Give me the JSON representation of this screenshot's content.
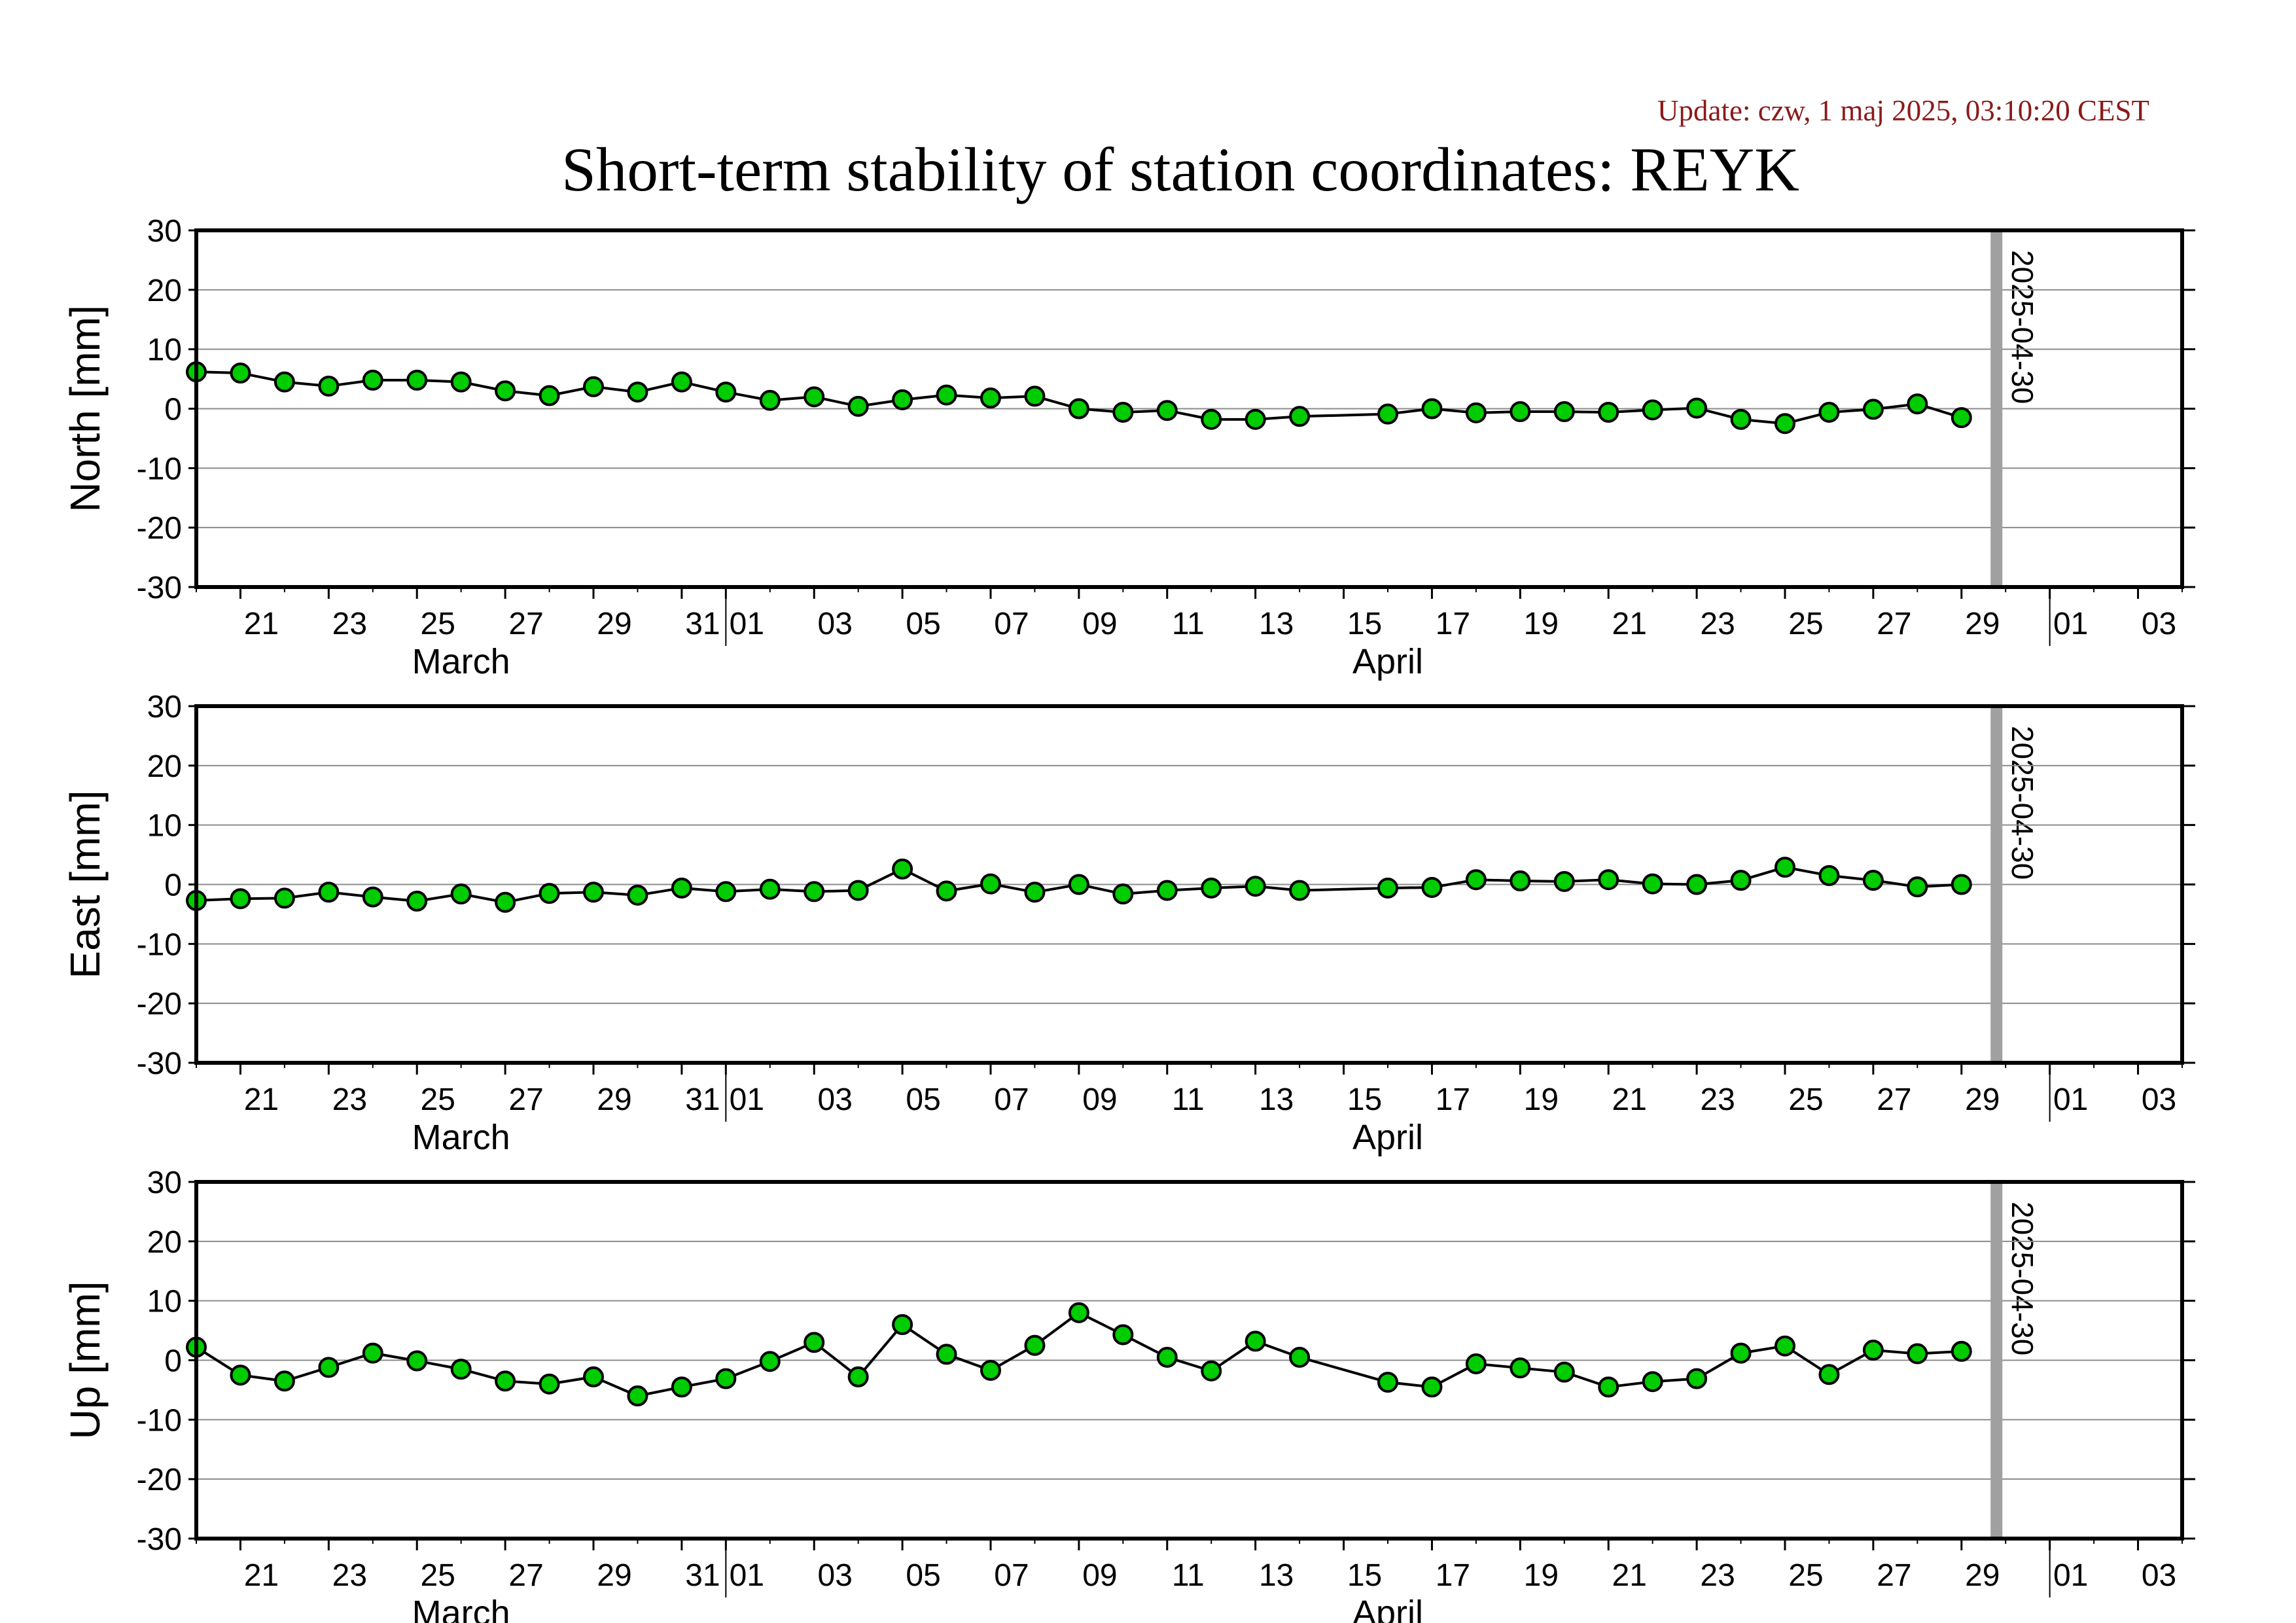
{
  "header": {
    "update": "Update: czw, 1 maj 2025, 03:10:20 CEST",
    "title": "Short-term stability of station coordinates: REYK"
  },
  "colors": {
    "point_fill": "#00cc00",
    "point_stroke": "#000000",
    "line": "#000000",
    "grid": "#8c8c8c",
    "marker_line": "#a0a0a0",
    "frame": "#000000"
  },
  "chart_data": [
    {
      "type": "line",
      "ylabel": "North [mm]",
      "ylim": [
        -30,
        30
      ],
      "yticks": [
        -30,
        -20,
        -10,
        0,
        10,
        20,
        30
      ],
      "xlim": [
        "2025-03-20",
        "2025-05-04"
      ],
      "xtick_labels": [
        "21",
        "23",
        "25",
        "27",
        "29",
        "31",
        "01",
        "03",
        "05",
        "07",
        "09",
        "11",
        "13",
        "15",
        "17",
        "19",
        "21",
        "23",
        "25",
        "27",
        "29",
        "01",
        "03"
      ],
      "month_labels": [
        "March",
        "April"
      ],
      "grid": true,
      "marker_label": "2025-04-30",
      "x": [
        "2025-03-20",
        "2025-03-21",
        "2025-03-22",
        "2025-03-23",
        "2025-03-24",
        "2025-03-25",
        "2025-03-26",
        "2025-03-27",
        "2025-03-28",
        "2025-03-29",
        "2025-03-30",
        "2025-03-31",
        "2025-04-01",
        "2025-04-02",
        "2025-04-03",
        "2025-04-04",
        "2025-04-05",
        "2025-04-06",
        "2025-04-07",
        "2025-04-08",
        "2025-04-09",
        "2025-04-10",
        "2025-04-11",
        "2025-04-12",
        "2025-04-13",
        "2025-04-14",
        "2025-04-16",
        "2025-04-17",
        "2025-04-18",
        "2025-04-19",
        "2025-04-20",
        "2025-04-21",
        "2025-04-22",
        "2025-04-23",
        "2025-04-24",
        "2025-04-25",
        "2025-04-26",
        "2025-04-27",
        "2025-04-28",
        "2025-04-29"
      ],
      "values": [
        6.2,
        6.0,
        4.5,
        3.8,
        4.8,
        4.8,
        4.5,
        3.0,
        2.2,
        3.7,
        2.8,
        4.5,
        2.8,
        1.4,
        2.0,
        0.4,
        1.5,
        2.3,
        1.8,
        2.1,
        0.0,
        -0.6,
        -0.3,
        -1.8,
        -1.8,
        -1.3,
        -0.9,
        0.0,
        -0.7,
        -0.5,
        -0.5,
        -0.6,
        -0.2,
        0.1,
        -1.8,
        -2.5,
        -0.6,
        -0.1,
        0.8,
        -1.5
      ]
    },
    {
      "type": "line",
      "ylabel": "East [mm]",
      "ylim": [
        -30,
        30
      ],
      "yticks": [
        -30,
        -20,
        -10,
        0,
        10,
        20,
        30
      ],
      "xlim": [
        "2025-03-20",
        "2025-05-04"
      ],
      "xtick_labels": [
        "21",
        "23",
        "25",
        "27",
        "29",
        "31",
        "01",
        "03",
        "05",
        "07",
        "09",
        "11",
        "13",
        "15",
        "17",
        "19",
        "21",
        "23",
        "25",
        "27",
        "29",
        "01",
        "03"
      ],
      "month_labels": [
        "March",
        "April"
      ],
      "grid": true,
      "marker_label": "2025-04-30",
      "x": [
        "2025-03-20",
        "2025-03-21",
        "2025-03-22",
        "2025-03-23",
        "2025-03-24",
        "2025-03-25",
        "2025-03-26",
        "2025-03-27",
        "2025-03-28",
        "2025-03-29",
        "2025-03-30",
        "2025-03-31",
        "2025-04-01",
        "2025-04-02",
        "2025-04-03",
        "2025-04-04",
        "2025-04-05",
        "2025-04-06",
        "2025-04-07",
        "2025-04-08",
        "2025-04-09",
        "2025-04-10",
        "2025-04-11",
        "2025-04-12",
        "2025-04-13",
        "2025-04-14",
        "2025-04-16",
        "2025-04-17",
        "2025-04-18",
        "2025-04-19",
        "2025-04-20",
        "2025-04-21",
        "2025-04-22",
        "2025-04-23",
        "2025-04-24",
        "2025-04-25",
        "2025-04-26",
        "2025-04-27",
        "2025-04-28",
        "2025-04-29"
      ],
      "values": [
        -2.7,
        -2.4,
        -2.3,
        -1.3,
        -2.1,
        -2.8,
        -1.6,
        -3.0,
        -1.5,
        -1.3,
        -1.8,
        -0.6,
        -1.2,
        -0.8,
        -1.2,
        -1.0,
        2.6,
        -1.1,
        0.1,
        -1.3,
        0.0,
        -1.6,
        -1.0,
        -0.6,
        -0.3,
        -1.0,
        -0.6,
        -0.5,
        0.8,
        0.6,
        0.5,
        0.8,
        0.1,
        0.0,
        0.7,
        2.9,
        1.5,
        0.7,
        -0.4,
        0.0
      ]
    },
    {
      "type": "line",
      "ylabel": "Up [mm]",
      "ylim": [
        -30,
        30
      ],
      "yticks": [
        -30,
        -20,
        -10,
        0,
        10,
        20,
        30
      ],
      "xlim": [
        "2025-03-20",
        "2025-05-04"
      ],
      "xtick_labels": [
        "21",
        "23",
        "25",
        "27",
        "29",
        "31",
        "01",
        "03",
        "05",
        "07",
        "09",
        "11",
        "13",
        "15",
        "17",
        "19",
        "21",
        "23",
        "25",
        "27",
        "29",
        "01",
        "03"
      ],
      "month_labels": [
        "March",
        "April"
      ],
      "grid": true,
      "marker_label": "2025-04-30",
      "x": [
        "2025-03-20",
        "2025-03-21",
        "2025-03-22",
        "2025-03-23",
        "2025-03-24",
        "2025-03-25",
        "2025-03-26",
        "2025-03-27",
        "2025-03-28",
        "2025-03-29",
        "2025-03-30",
        "2025-03-31",
        "2025-04-01",
        "2025-04-02",
        "2025-04-03",
        "2025-04-04",
        "2025-04-05",
        "2025-04-06",
        "2025-04-07",
        "2025-04-08",
        "2025-04-09",
        "2025-04-10",
        "2025-04-11",
        "2025-04-12",
        "2025-04-13",
        "2025-04-14",
        "2025-04-16",
        "2025-04-17",
        "2025-04-18",
        "2025-04-19",
        "2025-04-20",
        "2025-04-21",
        "2025-04-22",
        "2025-04-23",
        "2025-04-24",
        "2025-04-25",
        "2025-04-26",
        "2025-04-27",
        "2025-04-28",
        "2025-04-29"
      ],
      "values": [
        2.2,
        -2.5,
        -3.5,
        -1.2,
        1.2,
        -0.1,
        -1.5,
        -3.5,
        -4.0,
        -2.8,
        -6.0,
        -4.5,
        -3.1,
        -0.2,
        3.0,
        -2.8,
        6.0,
        1.0,
        -1.7,
        2.5,
        8.0,
        4.3,
        0.5,
        -1.8,
        3.2,
        0.5,
        -3.7,
        -4.5,
        -0.6,
        -1.3,
        -2.0,
        -4.5,
        -3.6,
        -3.1,
        1.2,
        2.4,
        -2.4,
        1.7,
        1.1,
        1.5
      ]
    }
  ]
}
